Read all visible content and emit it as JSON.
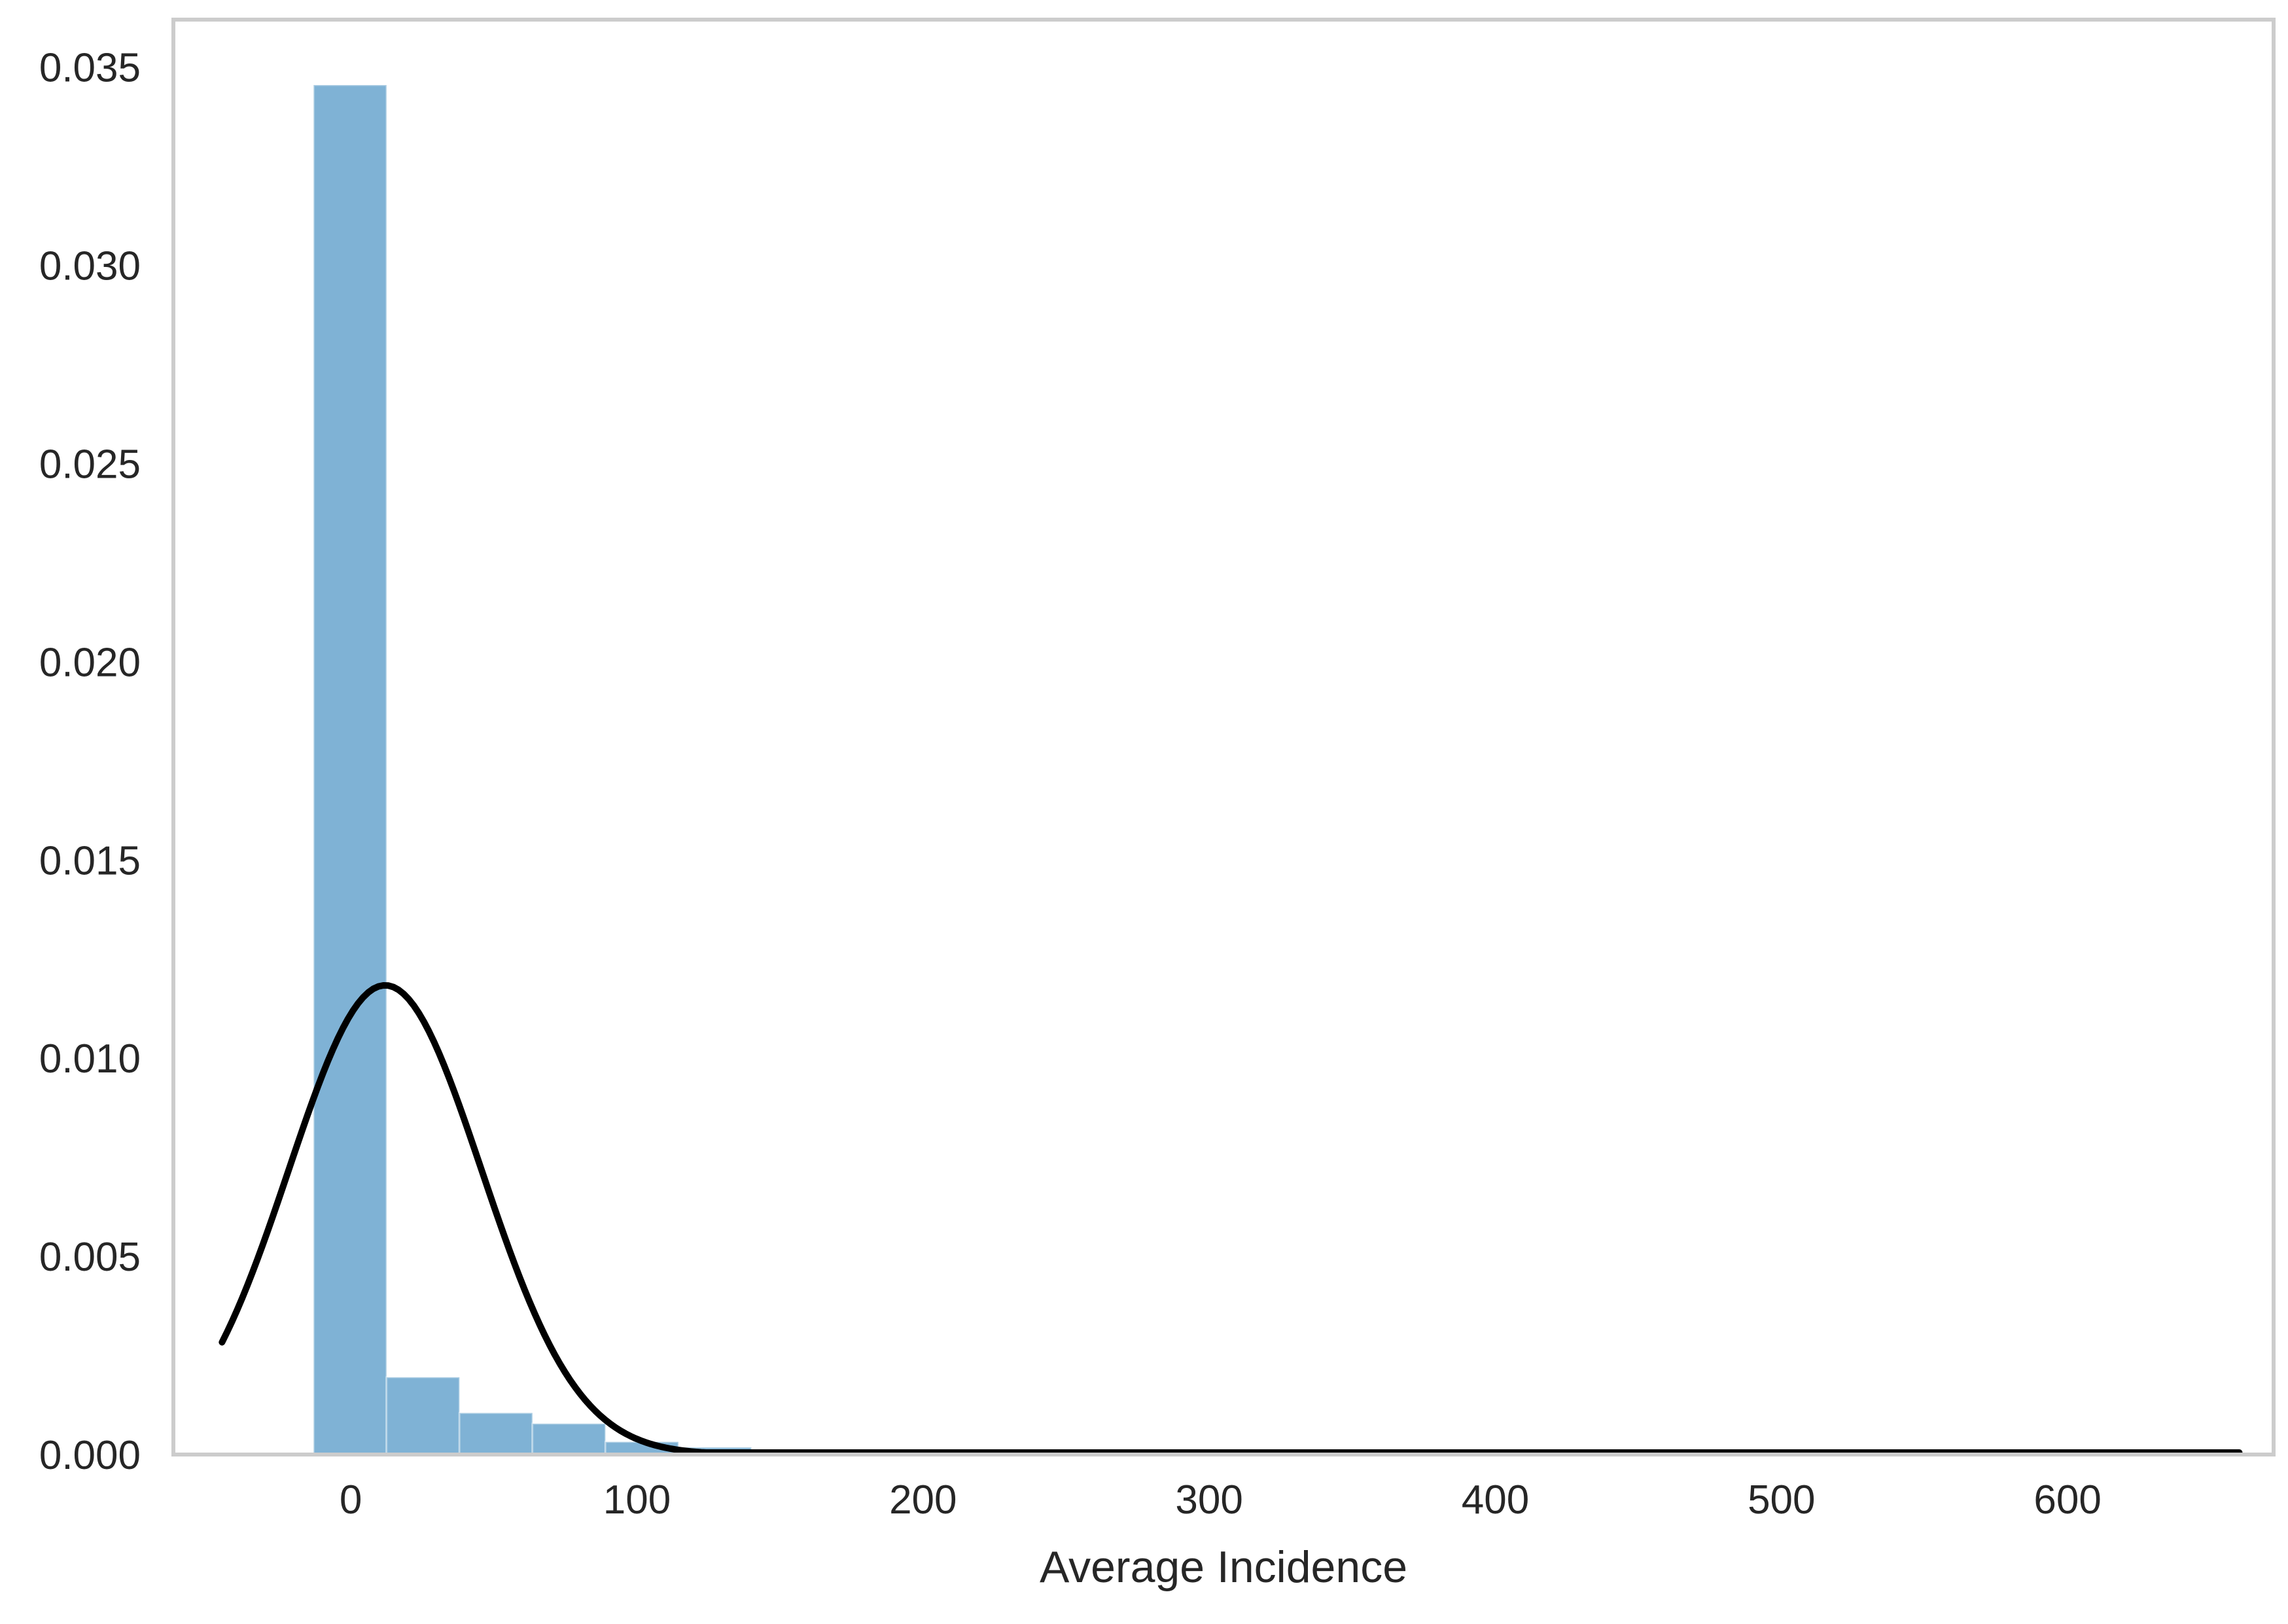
{
  "chart_data": {
    "type": "bar",
    "subtype": "histogram with fitted normal density curve",
    "title": "",
    "xlabel": "Average Incidence",
    "ylabel": "",
    "xlim": [
      -62,
      672
    ],
    "ylim": [
      0,
      0.0362
    ],
    "grid": false,
    "x_ticks": [
      0,
      100,
      200,
      300,
      400,
      500,
      600
    ],
    "x_tick_labels": [
      "0",
      "100",
      "200",
      "300",
      "400",
      "500",
      "600"
    ],
    "y_ticks": [
      0,
      0.005,
      0.01,
      0.015,
      0.02,
      0.025,
      0.03,
      0.035
    ],
    "y_tick_labels": [
      "0.000",
      "0.005",
      "0.010",
      "0.015",
      "0.020",
      "0.025",
      "0.030",
      "0.035"
    ],
    "bar_color": "#7fb2d5",
    "curve_color": "#000000",
    "frame_color": "#cccccc",
    "bins": [
      {
        "x0": -13,
        "x1": 12.5,
        "density": 0.03455
      },
      {
        "x0": 12.5,
        "x1": 38,
        "density": 0.00195
      },
      {
        "x0": 38,
        "x1": 63.5,
        "density": 0.00105
      },
      {
        "x0": 63.5,
        "x1": 89,
        "density": 0.00078
      },
      {
        "x0": 89,
        "x1": 114.5,
        "density": 0.00032
      },
      {
        "x0": 114.5,
        "x1": 140,
        "density": 0.00018
      },
      {
        "x0": 140,
        "x1": 165.5,
        "density": 7e-05
      },
      {
        "x0": 165.5,
        "x1": 191,
        "density": 4e-05
      },
      {
        "x0": 191,
        "x1": 216.5,
        "density": 2e-05
      },
      {
        "x0": 216.5,
        "x1": 242,
        "density": 1e-05
      },
      {
        "x0": 242,
        "x1": 267.5,
        "density": 1e-05
      },
      {
        "x0": 267.5,
        "x1": 293,
        "density": 1e-05
      },
      {
        "x0": 293,
        "x1": 318.5,
        "density": 1e-05
      },
      {
        "x0": 318.5,
        "x1": 344,
        "density": 1e-05
      },
      {
        "x0": 344,
        "x1": 369.5,
        "density": 1e-05
      },
      {
        "x0": 369.5,
        "x1": 395,
        "density": 1e-05
      },
      {
        "x0": 395,
        "x1": 420.5,
        "density": 1e-05
      },
      {
        "x0": 420.5,
        "x1": 446,
        "density": 1e-05
      },
      {
        "x0": 446,
        "x1": 471.5,
        "density": 1e-05
      },
      {
        "x0": 471.5,
        "x1": 497,
        "density": 1e-05
      },
      {
        "x0": 497,
        "x1": 522.5,
        "density": 1e-05
      },
      {
        "x0": 522.5,
        "x1": 548,
        "density": 1e-05
      },
      {
        "x0": 548,
        "x1": 573.5,
        "density": 1e-05
      },
      {
        "x0": 573.5,
        "x1": 599,
        "density": 1e-05
      },
      {
        "x0": 599,
        "x1": 624.5,
        "density": 1e-05
      },
      {
        "x0": 624.5,
        "x1": 650,
        "density": 1e-05
      }
    ],
    "fitted_curve": {
      "distribution": "normal",
      "mean": 12,
      "std": 33.7,
      "x_start": -45,
      "x_end": 660
    }
  }
}
